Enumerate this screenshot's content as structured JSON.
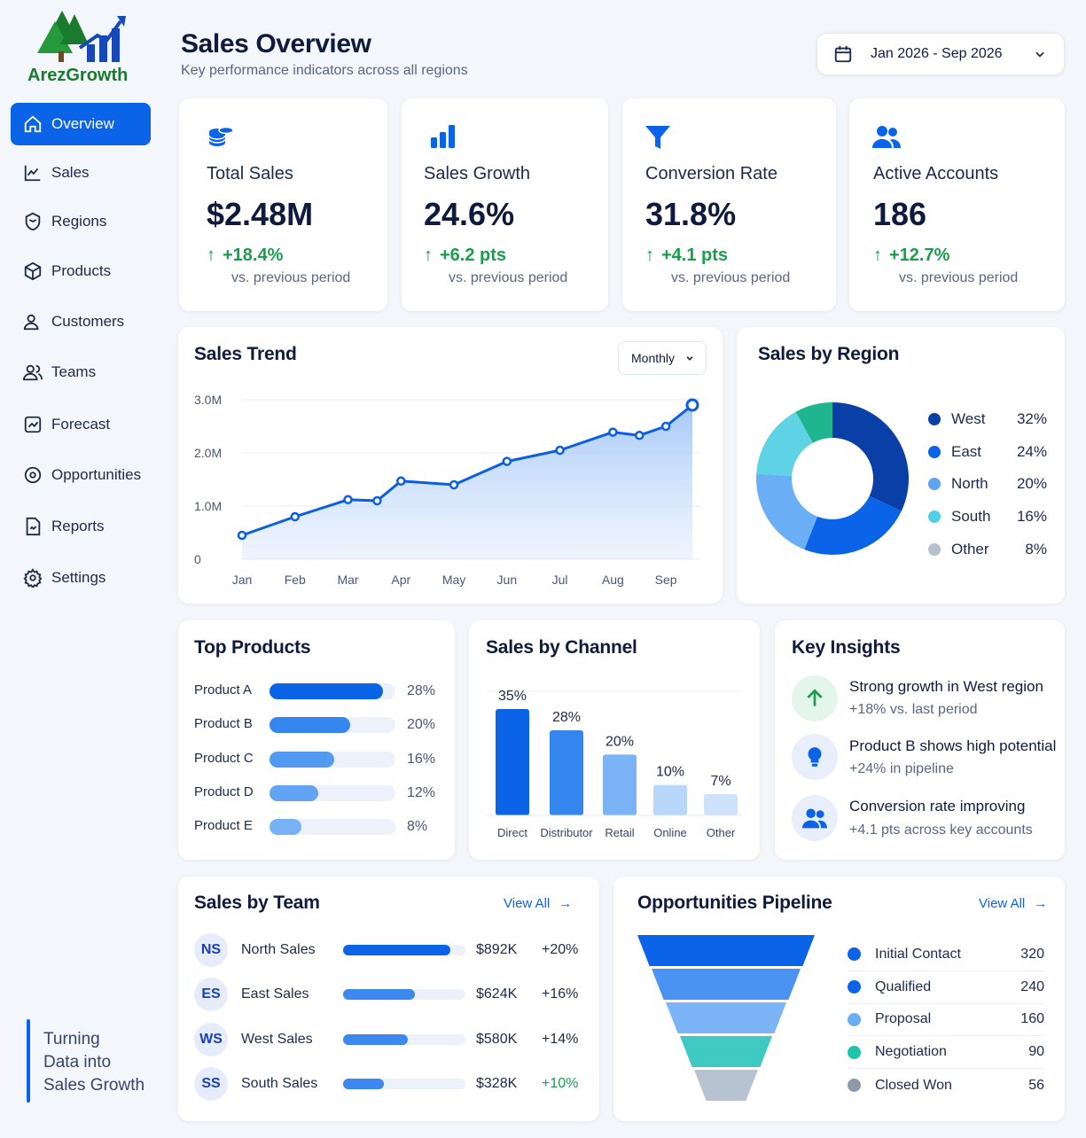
{
  "brand": {
    "name": "ArezGrowth",
    "tagline_lines": [
      "Turning",
      "Data into",
      "Sales Growth"
    ]
  },
  "sidebar": {
    "items": [
      {
        "label": "Overview",
        "icon": "home-icon",
        "active": true
      },
      {
        "label": "Sales",
        "icon": "line-chart-icon"
      },
      {
        "label": "Regions",
        "icon": "map-icon"
      },
      {
        "label": "Products",
        "icon": "box-icon"
      },
      {
        "label": "Customers",
        "icon": "user-icon"
      },
      {
        "label": "Teams",
        "icon": "users-icon"
      },
      {
        "label": "Forecast",
        "icon": "trend-icon"
      },
      {
        "label": "Opportunities",
        "icon": "target-icon"
      },
      {
        "label": "Reports",
        "icon": "report-icon"
      },
      {
        "label": "Settings",
        "icon": "gear-icon"
      }
    ]
  },
  "header": {
    "title": "Sales Overview",
    "subtitle": "Key performance indicators across all regions",
    "date_range": "Jan 2026 - Sep 2026"
  },
  "kpis": [
    {
      "label": "Total Sales",
      "value": "$2.48M",
      "delta": "+18.4%",
      "sub": "vs. previous period",
      "icon": "coins-icon"
    },
    {
      "label": "Sales Growth",
      "value": "24.6%",
      "delta": "+6.2 pts",
      "sub": "vs. previous period",
      "icon": "bar-chart-icon"
    },
    {
      "label": "Conversion Rate",
      "value": "31.8%",
      "delta": "+4.1 pts",
      "sub": "vs. previous period",
      "icon": "funnel-icon"
    },
    {
      "label": "Active Accounts",
      "value": "186",
      "delta": "+12.7%",
      "sub": "vs. previous period",
      "icon": "users-icon"
    }
  ],
  "trend": {
    "title": "Sales Trend",
    "period": "Monthly"
  },
  "region": {
    "title": "Sales by Region"
  },
  "products": {
    "title": "Top Products"
  },
  "channel": {
    "title": "Sales by Channel"
  },
  "insights": {
    "title": "Key Insights",
    "items": [
      {
        "title": "Strong growth in West region",
        "sub": "+18% vs. last period",
        "icon": "arrow-up-icon"
      },
      {
        "title": "Product B shows high potential",
        "sub": "+24% in pipeline",
        "icon": "lightbulb-icon"
      },
      {
        "title": "Conversion rate improving",
        "sub": "+4.1 pts across key accounts",
        "icon": "users-icon"
      }
    ]
  },
  "teams": {
    "title": "Sales by Team",
    "view_all": "View All",
    "rows": [
      {
        "initials": "NS",
        "name": "North Sales",
        "amount": "$892K",
        "pct": "+20%",
        "share": 0.88
      },
      {
        "initials": "ES",
        "name": "East Sales",
        "amount": "$624K",
        "pct": "+16%",
        "share": 0.59
      },
      {
        "initials": "WS",
        "name": "West Sales",
        "amount": "$580K",
        "pct": "+14%",
        "share": 0.53
      },
      {
        "initials": "SS",
        "name": "South Sales",
        "amount": "$328K",
        "pct": "+10%",
        "share": 0.33
      }
    ]
  },
  "pipeline": {
    "title": "Opportunities Pipeline",
    "view_all": "View All"
  },
  "colors": {
    "primary": "#0b63e8",
    "green": "#1a9e4b",
    "navy": "#0f1b3d"
  },
  "chart_data": [
    {
      "type": "area",
      "name": "Sales Trend",
      "categories": [
        "Jan",
        "Feb",
        "Mar",
        "Apr",
        "May",
        "Jun",
        "Jul",
        "Aug",
        "Sep"
      ],
      "x": [
        "Jan",
        "Feb",
        "Mar",
        "Mar",
        "Apr",
        "May",
        "Jun",
        "Jul",
        "Aug",
        "Aug",
        "Sep",
        "Sep"
      ],
      "values": [
        0.45,
        0.8,
        1.12,
        1.1,
        1.47,
        1.4,
        1.84,
        2.05,
        2.39,
        2.33,
        2.5,
        2.9
      ],
      "yticks": [
        "0",
        "1.0M",
        "2.0M",
        "3.0M"
      ],
      "ylim": [
        0,
        3.0
      ]
    },
    {
      "type": "pie",
      "name": "Sales by Region",
      "categories": [
        "West",
        "East",
        "North",
        "South",
        "Other"
      ],
      "values": [
        32,
        24,
        20,
        16,
        8
      ],
      "labels": [
        "32%",
        "24%",
        "20%",
        "16%",
        "8%"
      ],
      "colors": [
        "#0a3fa8",
        "#0b63e8",
        "#5ea4f5",
        "#4fd0e6",
        "#b6c0cf"
      ]
    },
    {
      "type": "bar",
      "name": "Top Products",
      "categories": [
        "Product A",
        "Product B",
        "Product C",
        "Product D",
        "Product E"
      ],
      "values": [
        28,
        20,
        16,
        12,
        8
      ],
      "labels": [
        "28%",
        "20%",
        "16%",
        "12%",
        "8%"
      ]
    },
    {
      "type": "bar",
      "name": "Sales by Channel",
      "categories": [
        "Direct",
        "Distributor",
        "Retail",
        "Online",
        "Other"
      ],
      "values": [
        35,
        28,
        20,
        10,
        7
      ],
      "labels": [
        "35%",
        "28%",
        "20%",
        "10%",
        "7%"
      ]
    },
    {
      "type": "bar",
      "name": "Opportunities Pipeline",
      "categories": [
        "Initial Contact",
        "Qualified",
        "Proposal",
        "Negotiation",
        "Closed Won"
      ],
      "values": [
        320,
        240,
        160,
        90,
        56
      ],
      "colors": [
        "#0b63e8",
        "#0b63e8",
        "#6aaef5",
        "#1fc3a8",
        "#8e99aa"
      ]
    }
  ]
}
